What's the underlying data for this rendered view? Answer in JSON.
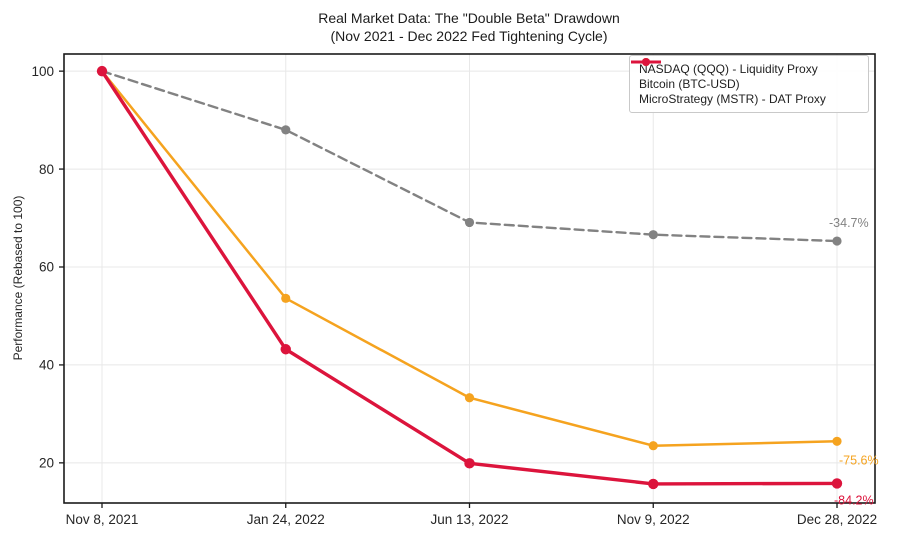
{
  "chart_data": {
    "type": "line",
    "title": "Real Market Data: The \"Double Beta\" Drawdown",
    "subtitle": "(Nov 2021 - Dec 2022 Fed Tightening Cycle)",
    "ylabel": "Performance (Rebased to 100)",
    "categories": [
      "Nov 8, 2021",
      "Jan 24, 2022",
      "Jun 13, 2022",
      "Nov 9, 2022",
      "Dec 28, 2022"
    ],
    "yticks": [
      20,
      40,
      60,
      80,
      100
    ],
    "ylim": [
      11.8,
      103.5
    ],
    "grid": true,
    "legend_position": "upper-right",
    "colors": {
      "grid": "#e8e8e8",
      "axis": "#1a1a1a",
      "tick_text": "#262626",
      "title_text": "#1c1c1c"
    },
    "series": [
      {
        "name": "NASDAQ (QQQ) - Liquidity Proxy",
        "color": "#828282",
        "dash": "9 5",
        "line_width": 2.4,
        "marker_radius": 4.6,
        "values": [
          100,
          88.0,
          69.1,
          66.6,
          65.3
        ],
        "end_label": "-34.7%",
        "end_label_side": "above"
      },
      {
        "name": "Bitcoin (BTC-USD)",
        "color": "#F5A31F",
        "dash": "",
        "line_width": 2.5,
        "marker_radius": 4.6,
        "values": [
          100,
          53.6,
          33.3,
          23.5,
          24.4
        ],
        "end_label": "-75.6%",
        "end_label_side": "below"
      },
      {
        "name": "MicroStrategy (MSTR) - DAT Proxy",
        "color": "#DC143C",
        "dash": "",
        "line_width": 3.4,
        "marker_radius": 5.2,
        "values": [
          100,
          43.2,
          19.9,
          15.7,
          15.8
        ],
        "end_label": "-84.2%",
        "end_label_side": "below"
      }
    ]
  }
}
